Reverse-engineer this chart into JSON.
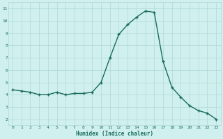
{
  "x": [
    0,
    1,
    2,
    3,
    4,
    5,
    6,
    7,
    8,
    9,
    10,
    11,
    12,
    13,
    14,
    15,
    16,
    17,
    18,
    19,
    20,
    21,
    22,
    23
  ],
  "y": [
    4.4,
    4.3,
    4.2,
    4.0,
    4.0,
    4.2,
    4.0,
    4.1,
    4.1,
    4.2,
    5.0,
    7.0,
    8.9,
    9.7,
    10.3,
    10.8,
    10.7,
    6.7,
    4.6,
    3.8,
    3.1,
    2.7,
    2.5,
    2.0
  ],
  "xlabel": "Humidex (Indice chaleur)",
  "ylabel": "",
  "xlim": [
    -0.5,
    23.5
  ],
  "ylim": [
    1.5,
    11.5
  ],
  "yticks": [
    2,
    3,
    4,
    5,
    6,
    7,
    8,
    9,
    10,
    11
  ],
  "xticks": [
    0,
    1,
    2,
    3,
    4,
    5,
    6,
    7,
    8,
    9,
    10,
    11,
    12,
    13,
    14,
    15,
    16,
    17,
    18,
    19,
    20,
    21,
    22,
    23
  ],
  "bg_color": "#cff0ee",
  "grid_color": "#aed8d4",
  "line_color": "#1a6b5a",
  "marker_color": "#1a6b5a",
  "tick_label_color": "#1a6b5a",
  "xlabel_color": "#1a6b5a",
  "axis_color": "#aed8d4",
  "line_width": 1.0,
  "marker_size": 2.5
}
